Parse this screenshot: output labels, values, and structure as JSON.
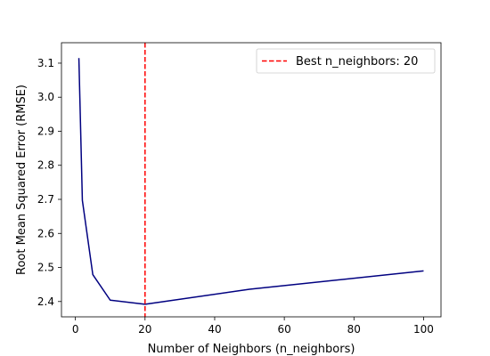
{
  "chart_data": {
    "type": "line",
    "title": "",
    "xlabel": "Number of Neighbors (n_neighbors)",
    "ylabel": "Root Mean Squared Error (RMSE)",
    "xlim": [
      -4,
      105
    ],
    "ylim": [
      2.355,
      3.16
    ],
    "xticks": [
      0,
      20,
      40,
      60,
      80,
      100
    ],
    "yticks": [
      2.4,
      2.5,
      2.6,
      2.7,
      2.8,
      2.9,
      3.0,
      3.1
    ],
    "xtick_labels": [
      "0",
      "20",
      "40",
      "60",
      "80",
      "100"
    ],
    "ytick_labels": [
      "2.4",
      "2.5",
      "2.6",
      "2.7",
      "2.8",
      "2.9",
      "3.0",
      "3.1"
    ],
    "grid": false,
    "legend_position": "top-right",
    "series": [
      {
        "x": [
          1,
          2,
          5,
          10,
          20,
          50,
          100
        ],
        "y": [
          3.115,
          2.697,
          2.479,
          2.404,
          2.392,
          2.436,
          2.49
        ],
        "color": "#000080"
      }
    ],
    "annotations": [
      {
        "type": "vline",
        "x": 20,
        "label": "Best n_neighbors: 20",
        "color": "#ff0000",
        "style": "dashed"
      }
    ]
  }
}
